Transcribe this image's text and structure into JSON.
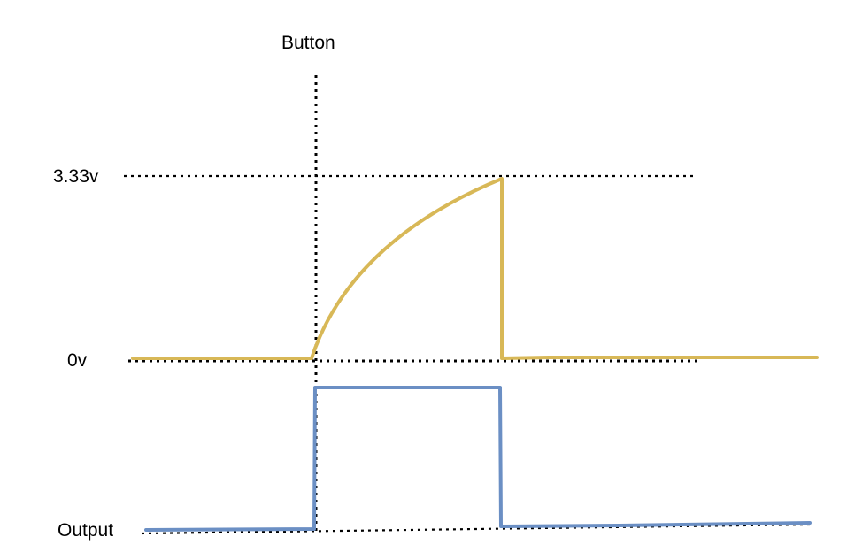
{
  "labels": {
    "button": "Button",
    "voltage_high": "3.33v",
    "voltage_zero": "0v",
    "output": "Output"
  },
  "colors": {
    "voltage_trace": "#D8B857",
    "output_trace": "#6B8FC4",
    "guide_lines": "#000000",
    "background": "#FFFFFF"
  }
}
